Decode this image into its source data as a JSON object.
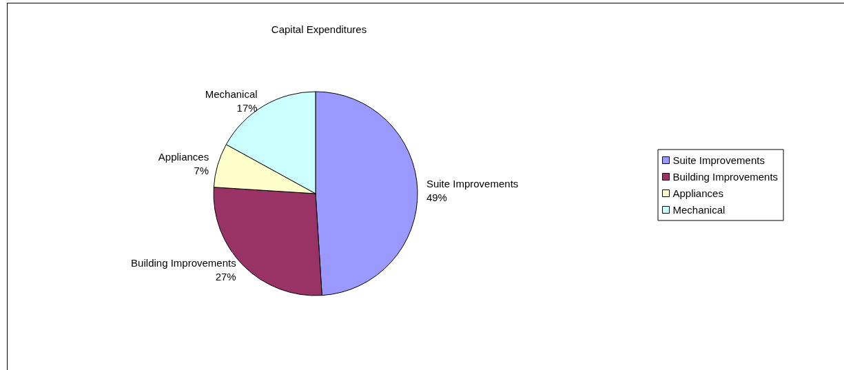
{
  "chart_data": {
    "type": "pie",
    "title": "Capital Expenditures",
    "categories": [
      "Suite Improvements",
      "Building Improvements",
      "Appliances",
      "Mechanical"
    ],
    "values": [
      49,
      27,
      7,
      17
    ],
    "colors": [
      "#9999ff",
      "#993366",
      "#ffffcc",
      "#ccffff"
    ],
    "value_labels": [
      "49%",
      "27%",
      "7%",
      "17%"
    ],
    "legend": "right"
  }
}
